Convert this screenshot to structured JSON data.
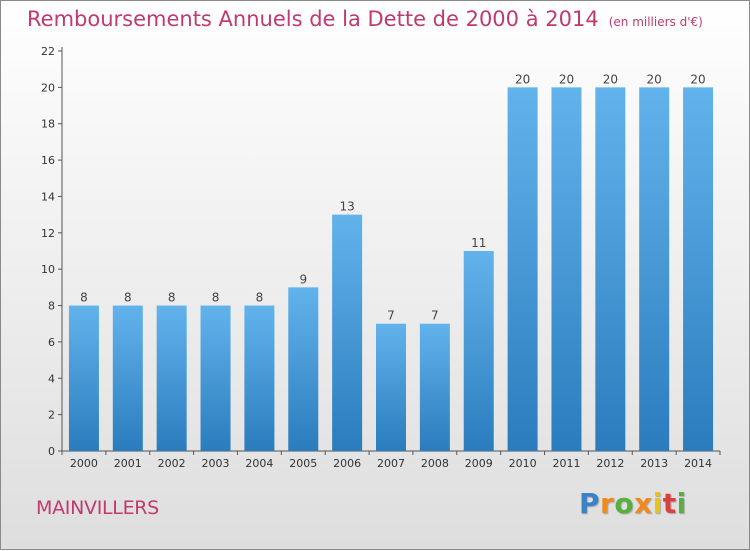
{
  "chart_data": {
    "type": "bar",
    "title": "Remboursements Annuels de la Dette de 2000 à 2014",
    "unit": "(en milliers d'€)",
    "categories": [
      "2000",
      "2001",
      "2002",
      "2003",
      "2004",
      "2005",
      "2006",
      "2007",
      "2008",
      "2009",
      "2010",
      "2011",
      "2012",
      "2013",
      "2014"
    ],
    "values": [
      8,
      8,
      8,
      8,
      8,
      9,
      13,
      7,
      7,
      11,
      20,
      20,
      20,
      20,
      20
    ],
    "ylim": [
      0,
      22
    ],
    "yticks": [
      0,
      2,
      4,
      6,
      8,
      10,
      12,
      14,
      16,
      18,
      20,
      22
    ],
    "grid": false,
    "colors": {
      "bar_top": "#62b3ec",
      "bar_bottom": "#2b7cbd",
      "axis": "#555555",
      "title": "#c03a70"
    }
  },
  "footer": {
    "location": "MAINVILLERS",
    "logo_text": "Proxiti"
  }
}
